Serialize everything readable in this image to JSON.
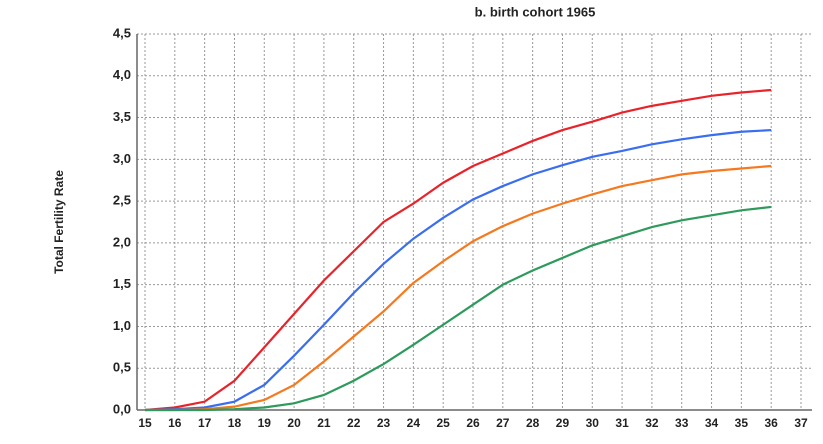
{
  "chart_data": {
    "type": "line",
    "title": "b. birth cohort 1965",
    "y_label": "Total Fertility Rate",
    "x": [
      15,
      16,
      17,
      18,
      19,
      20,
      21,
      22,
      23,
      24,
      25,
      26,
      27,
      28,
      29,
      30,
      31,
      32,
      33,
      34,
      35,
      36
    ],
    "series": [
      {
        "color": "#e8232a",
        "values": [
          0,
          0.03,
          0.1,
          0.35,
          0.75,
          1.15,
          1.55,
          1.9,
          2.25,
          2.47,
          2.72,
          2.92,
          3.07,
          3.22,
          3.35,
          3.45,
          3.56,
          3.64,
          3.7,
          3.76,
          3.8,
          3.83
        ]
      },
      {
        "color": "#3a6df0",
        "values": [
          0,
          0.01,
          0.03,
          0.1,
          0.3,
          0.65,
          1.02,
          1.4,
          1.75,
          2.05,
          2.3,
          2.52,
          2.68,
          2.82,
          2.93,
          3.03,
          3.1,
          3.18,
          3.24,
          3.29,
          3.33,
          3.35
        ]
      },
      {
        "color": "#f5791f",
        "values": [
          0,
          0,
          0.01,
          0.04,
          0.12,
          0.3,
          0.58,
          0.88,
          1.18,
          1.52,
          1.78,
          2.02,
          2.2,
          2.35,
          2.47,
          2.58,
          2.68,
          2.75,
          2.82,
          2.86,
          2.89,
          2.92
        ]
      },
      {
        "color": "#2e9a5c",
        "values": [
          0,
          0,
          0,
          0.01,
          0.03,
          0.08,
          0.18,
          0.35,
          0.55,
          0.78,
          1.02,
          1.26,
          1.5,
          1.67,
          1.82,
          1.97,
          2.08,
          2.19,
          2.27,
          2.33,
          2.39,
          2.43
        ]
      }
    ],
    "xlim": [
      15,
      37
    ],
    "xticks": [
      15,
      16,
      17,
      18,
      19,
      20,
      21,
      22,
      23,
      24,
      25,
      26,
      27,
      28,
      29,
      30,
      31,
      32,
      33,
      34,
      35,
      36,
      37
    ],
    "ylim": [
      0,
      4.5
    ],
    "yticks": [
      {
        "value": 0,
        "label": "0,0"
      },
      {
        "value": 0.5,
        "label": "0,5"
      },
      {
        "value": 1,
        "label": "1,0"
      },
      {
        "value": 1.5,
        "label": "1,5"
      },
      {
        "value": 2,
        "label": "2,0"
      },
      {
        "value": 2.5,
        "label": "2,5"
      },
      {
        "value": 3,
        "label": "3,0"
      },
      {
        "value": 3.5,
        "label": "3,5"
      },
      {
        "value": 4,
        "label": "4,0"
      },
      {
        "value": 4.5,
        "label": "4,5"
      }
    ],
    "grid": true
  }
}
